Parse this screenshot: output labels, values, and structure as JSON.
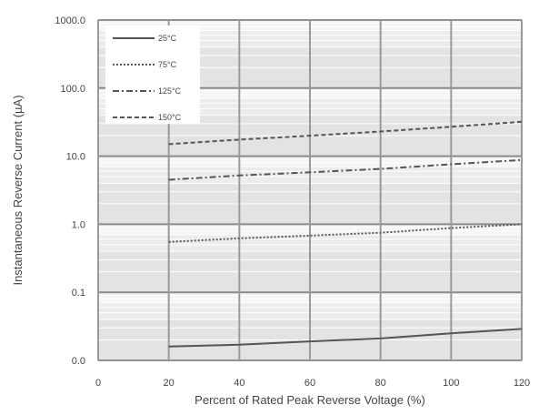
{
  "chart_data": {
    "type": "line",
    "xlabel": "Percent of  Rated Peak Reverse Voltage (%)",
    "ylabel": "Instantaneous Reverse Current (µA)",
    "xlim": [
      0,
      120
    ],
    "ylim": [
      0.01,
      1000
    ],
    "yscale": "log",
    "x_ticks": [
      0,
      20,
      40,
      60,
      80,
      100,
      120
    ],
    "x_tick_labels": [
      "0",
      "20",
      "40",
      "60",
      "80",
      "100",
      "120"
    ],
    "y_ticks": [
      0.01,
      0.1,
      1,
      10,
      100,
      1000
    ],
    "y_tick_labels": [
      "0.0",
      "0.1",
      "1.0",
      "10.0",
      "100.0",
      "1000.0"
    ],
    "grid": true,
    "legend_position": "top-left",
    "series": [
      {
        "name": "25°C",
        "style": "solid",
        "x": [
          20,
          40,
          60,
          80,
          100,
          120
        ],
        "y": [
          0.016,
          0.017,
          0.019,
          0.021,
          0.025,
          0.029
        ]
      },
      {
        "name": "75°C",
        "style": "dotted",
        "x": [
          20,
          40,
          60,
          80,
          100,
          120
        ],
        "y": [
          0.55,
          0.62,
          0.68,
          0.75,
          0.88,
          1.0
        ]
      },
      {
        "name": "125°C",
        "style": "dash-dot",
        "x": [
          20,
          40,
          60,
          80,
          100,
          120
        ],
        "y": [
          4.5,
          5.2,
          5.8,
          6.5,
          7.6,
          8.8
        ]
      },
      {
        "name": "150°C",
        "style": "dashed",
        "x": [
          20,
          40,
          60,
          80,
          100,
          120
        ],
        "y": [
          15,
          17.5,
          20,
          23,
          27,
          32
        ]
      }
    ]
  }
}
